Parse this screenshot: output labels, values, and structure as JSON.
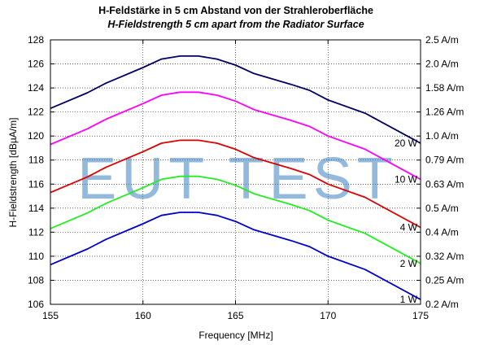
{
  "chart_data": {
    "type": "line",
    "title": "H-Feldstärke in 5 cm Abstand von der Strahleroberfläche",
    "subtitle": "H-Fieldstrength 5 cm apart from the Radiator Surface",
    "xlabel": "Frequency [MHz]",
    "ylabel": "H-Fieldstrength [dBµA/m]",
    "xlim": [
      155,
      175
    ],
    "ylim": [
      106,
      128
    ],
    "xticks": [
      "155",
      "160",
      "165",
      "170",
      "175"
    ],
    "yticks": [
      "106",
      "108",
      "110",
      "112",
      "114",
      "116",
      "118",
      "120",
      "122",
      "124",
      "126",
      "128"
    ],
    "y2ticks": [
      {
        "value": 106,
        "label": "0.2 A/m"
      },
      {
        "value": 108,
        "label": "0.25 A/m"
      },
      {
        "value": 110,
        "label": "0.32 A/m"
      },
      {
        "value": 112,
        "label": "0.4 A/m"
      },
      {
        "value": 114,
        "label": "0.5 A/m"
      },
      {
        "value": 116,
        "label": "0.63 A/m"
      },
      {
        "value": 118,
        "label": "0.79 A/m"
      },
      {
        "value": 120,
        "label": "1.0 A/m"
      },
      {
        "value": 122,
        "label": "1.26 A/m"
      },
      {
        "value": 124,
        "label": "1.58 A/m"
      },
      {
        "value": 126,
        "label": "2.0 A/m"
      },
      {
        "value": 128,
        "label": "2.5 A/m"
      }
    ],
    "x": [
      155,
      157,
      158,
      160,
      161,
      162,
      163,
      164,
      165,
      166,
      168,
      169,
      170,
      172,
      175
    ],
    "series": [
      {
        "name": "20 W",
        "color": "#000066",
        "values": [
          122.3,
          123.6,
          124.4,
          125.7,
          126.4,
          126.65,
          126.65,
          126.4,
          125.9,
          125.2,
          124.3,
          123.8,
          123.0,
          121.9,
          119.4
        ]
      },
      {
        "name": "10 W",
        "color": "#ff00ff",
        "values": [
          119.3,
          120.6,
          121.4,
          122.7,
          123.4,
          123.65,
          123.65,
          123.4,
          122.9,
          122.2,
          121.3,
          120.8,
          120.0,
          118.9,
          116.4
        ]
      },
      {
        "name": "4 W",
        "color": "#dd0000",
        "values": [
          115.3,
          116.6,
          117.4,
          118.7,
          119.4,
          119.65,
          119.65,
          119.4,
          118.9,
          118.2,
          117.3,
          116.8,
          116.0,
          114.9,
          112.4
        ]
      },
      {
        "name": "2 W",
        "color": "#22ee22",
        "values": [
          112.3,
          113.6,
          114.4,
          115.7,
          116.4,
          116.65,
          116.65,
          116.4,
          115.9,
          115.2,
          114.3,
          113.8,
          113.0,
          111.9,
          109.4
        ]
      },
      {
        "name": "1 W",
        "color": "#0000cc",
        "values": [
          109.3,
          110.6,
          111.4,
          112.7,
          113.4,
          113.65,
          113.65,
          113.4,
          112.9,
          112.2,
          111.3,
          110.8,
          110.0,
          108.9,
          106.4
        ]
      }
    ],
    "watermark": "EUT TEST",
    "grid": true
  }
}
